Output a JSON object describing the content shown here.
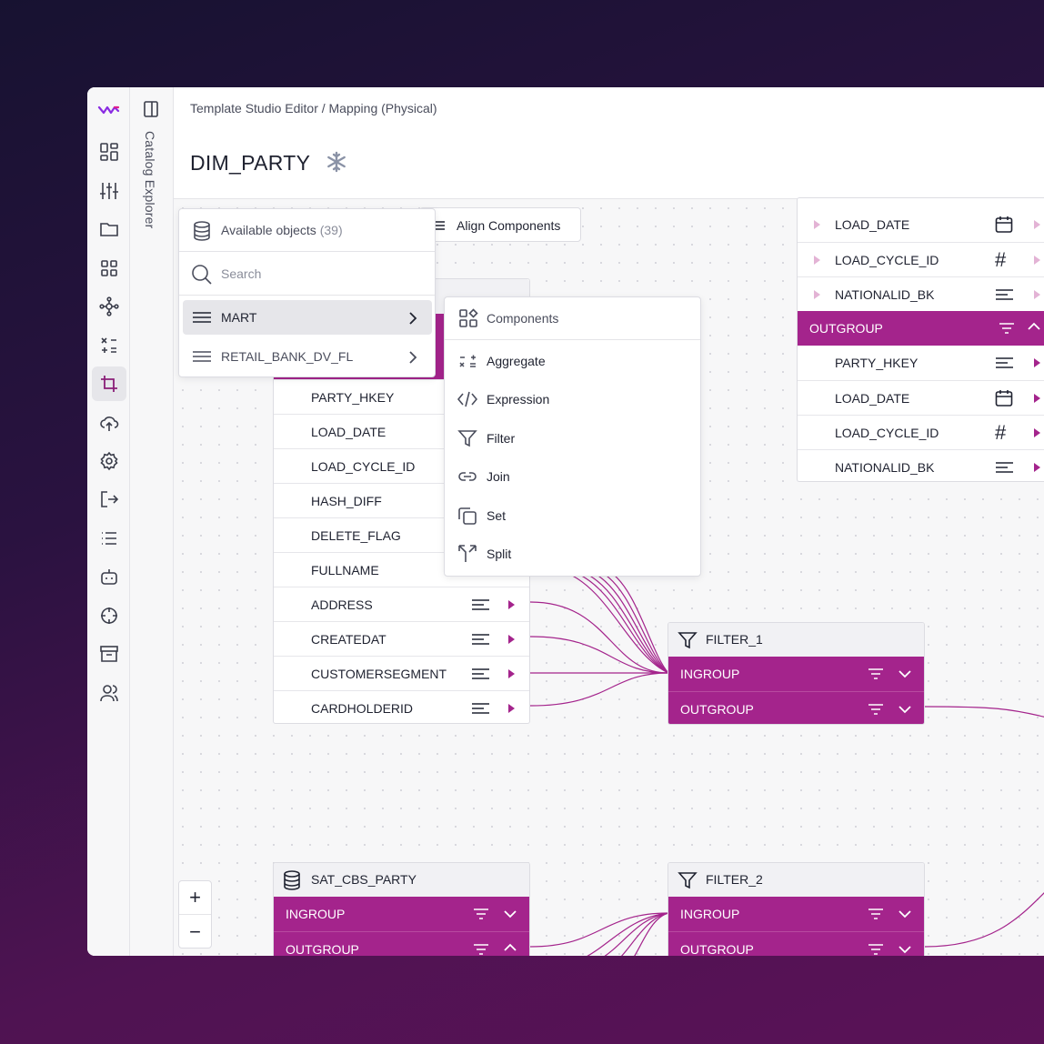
{
  "breadcrumb": "Template Studio Editor / Mapping (Physical)",
  "page_title": "DIM_PARTY",
  "catalog_label": "Catalog Explorer",
  "toolbar": {
    "align_label": "Align Components"
  },
  "objects_panel": {
    "title": "Available objects",
    "count": "(39)",
    "search_placeholder": "Search",
    "items": [
      {
        "label": "MART"
      },
      {
        "label": "RETAIL_BANK_DV_FL"
      }
    ]
  },
  "components_menu": {
    "title": "Components",
    "items": [
      {
        "label": "Aggregate",
        "icon": "aggregate-icon"
      },
      {
        "label": "Expression",
        "icon": "code-icon"
      },
      {
        "label": "Filter",
        "icon": "filter-icon"
      },
      {
        "label": "Join",
        "icon": "link-icon"
      },
      {
        "label": "Set",
        "icon": "copy-icon"
      },
      {
        "label": "Split",
        "icon": "split-icon"
      }
    ]
  },
  "source_table": {
    "fields": [
      "PARTY_HKEY",
      "LOAD_DATE",
      "LOAD_CYCLE_ID",
      "HASH_DIFF",
      "DELETE_FLAG",
      "FULLNAME",
      "ADDRESS",
      "CREATEDAT",
      "CUSTOMERSEGMENT",
      "CARDHOLDERID"
    ]
  },
  "right_table": {
    "top_fields": [
      "LOAD_DATE",
      "LOAD_CYCLE_ID",
      "NATIONALID_BK"
    ],
    "group_label": "OUTGROUP",
    "group_fields": [
      "PARTY_HKEY",
      "LOAD_DATE",
      "LOAD_CYCLE_ID",
      "NATIONALID_BK"
    ]
  },
  "filter_1": {
    "title": "FILTER_1",
    "ingroup": "INGROUP",
    "outgroup": "OUTGROUP"
  },
  "filter_2": {
    "title": "FILTER_2",
    "ingroup": "INGROUP",
    "outgroup": "OUTGROUP"
  },
  "sat_table": {
    "title": "SAT_CBS_PARTY",
    "ingroup": "INGROUP",
    "outgroup": "OUTGROUP"
  },
  "zoom": {
    "in": "+",
    "out": "−"
  },
  "colors": {
    "accent": "#a4248c",
    "brand": "#7b2ff7"
  }
}
